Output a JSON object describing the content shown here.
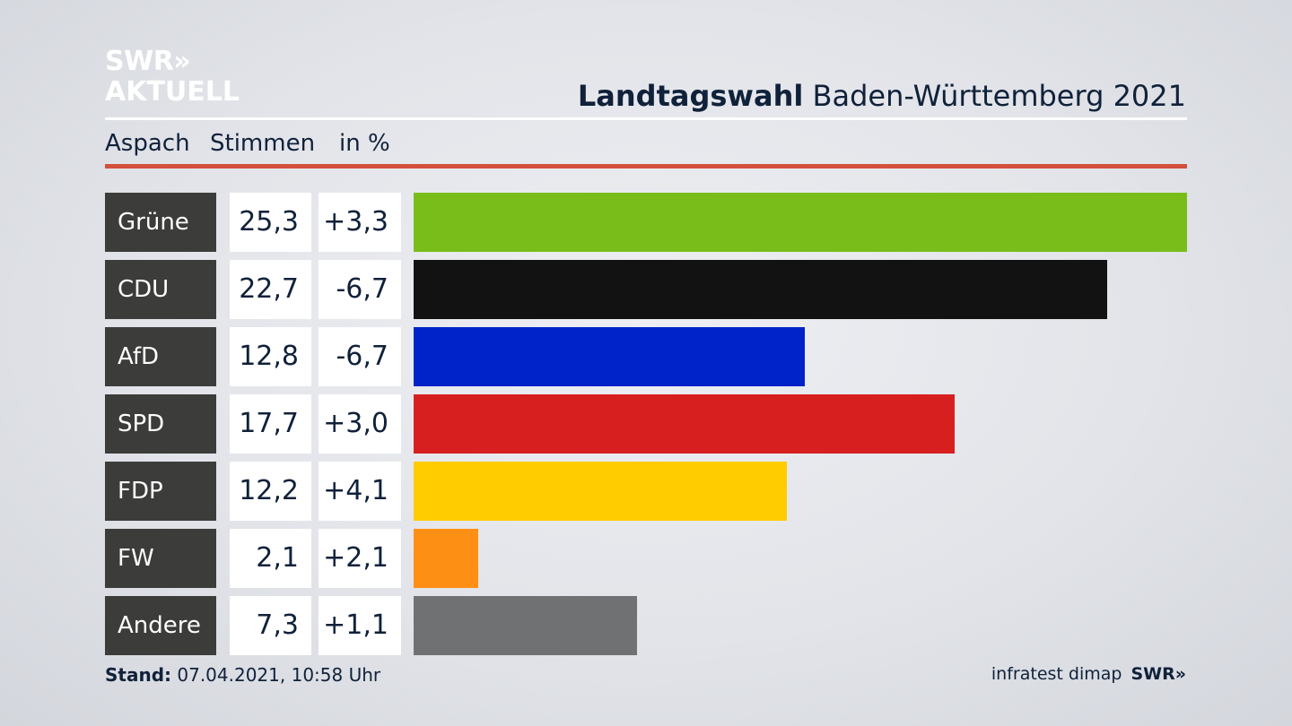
{
  "brand": {
    "logo_line1": "SWR»",
    "logo_line2": "AKTUELL"
  },
  "header": {
    "title_bold": "Landtagswahl",
    "title_rest": " Baden-Württemberg 2021"
  },
  "subheader": {
    "location": "Aspach",
    "col_votes": "Stimmen",
    "col_unit": "in %"
  },
  "footer": {
    "stand_label": "Stand:",
    "stand_value": " 07.04.2021, 10:58 Uhr",
    "source": "infratest dimap",
    "source_logo": "SWR»"
  },
  "chart_data": {
    "type": "bar",
    "orientation": "horizontal",
    "categories": [
      "Grüne",
      "CDU",
      "AfD",
      "SPD",
      "FDP",
      "FW",
      "Andere"
    ],
    "values": [
      25.3,
      22.7,
      12.8,
      17.7,
      12.2,
      2.1,
      7.3
    ],
    "value_labels": [
      "25,3",
      "22,7",
      "12,8",
      "17,7",
      "12,2",
      "2,1",
      "7,3"
    ],
    "change_labels": [
      "+3,3",
      "-6,7",
      "-6,7",
      "+3,0",
      "+4,1",
      "+2,1",
      "+1,1"
    ],
    "colors": [
      "#79bd1b",
      "#121212",
      "#0022c9",
      "#d71f20",
      "#ffcc00",
      "#fe8f15",
      "#707172"
    ],
    "xlim": [
      0,
      25.3
    ],
    "grid": false,
    "legend": "none"
  }
}
